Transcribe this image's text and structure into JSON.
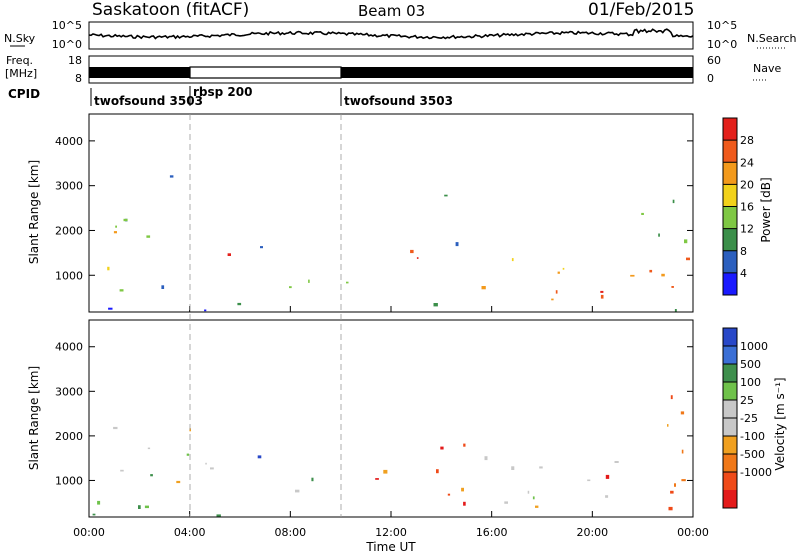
{
  "header": {
    "title_left": "Saskatoon (fitACF)",
    "title_center": "Beam 03",
    "title_right": "01/Feb/2015"
  },
  "noise_panel": {
    "left_label": "N.Sky",
    "right_label": "N.Search",
    "left_ticks": [
      "10^5",
      "10^0"
    ],
    "right_ticks": [
      "10^5",
      "10^0"
    ]
  },
  "freq_panel": {
    "left_label_1": "Freq.",
    "left_label_2": "[MHz]",
    "right_label": "Nave",
    "left_ticks": [
      "18",
      "8"
    ],
    "right_ticks": [
      "60",
      "0"
    ]
  },
  "cpid_panel": {
    "label": "CPID",
    "segments": [
      {
        "name": "twofsound 3503",
        "start_hour": 0,
        "end_hour": 3.9
      },
      {
        "name": "rbsp 200",
        "start_hour": 3.9,
        "end_hour": 9.8
      },
      {
        "name": "twofsound 3503",
        "start_hour": 9.8,
        "end_hour": 24
      }
    ]
  },
  "chart_data": [
    {
      "type": "heatmap",
      "parameter": "Power",
      "ylabel": "Slant Range [km]",
      "ylim": [
        180,
        4600
      ],
      "yticks": [
        "1000",
        "2000",
        "3000",
        "4000"
      ],
      "x_unit": "hours UT",
      "xlim": [
        0,
        24
      ],
      "colorbar_label": "Power [dB]",
      "colorbar_ticks": [
        "4",
        "8",
        "12",
        "16",
        "20",
        "24",
        "28"
      ],
      "colorbar_colors": [
        "#1a1aff",
        "#2b5fbe",
        "#3b8f4a",
        "#7fc844",
        "#f2d21b",
        "#f39a1c",
        "#ef5a1c",
        "#e3201b"
      ],
      "echo_regions": [
        {
          "t0": 0,
          "t1": 1.6,
          "r0": 300,
          "r1": 2300,
          "level": 0.55
        },
        {
          "t0": 1.2,
          "t1": 3.2,
          "r0": 700,
          "r1": 2700,
          "level": 0.35
        },
        {
          "t0": 2.6,
          "t1": 3.4,
          "r0": 2600,
          "r1": 3400,
          "level": 0.15
        },
        {
          "t0": 4.8,
          "t1": 5.6,
          "r0": 800,
          "r1": 1700,
          "level": 0.9
        },
        {
          "t0": 6.2,
          "t1": 7.0,
          "r0": 1400,
          "r1": 2300,
          "level": 0.25
        },
        {
          "t0": 7.0,
          "t1": 9.5,
          "r0": 400,
          "r1": 1100,
          "level": 0.3
        },
        {
          "t0": 10.0,
          "t1": 11.2,
          "r0": 500,
          "r1": 1500,
          "level": 0.35
        },
        {
          "t0": 12.2,
          "t1": 14.0,
          "r0": 400,
          "r1": 1600,
          "level": 0.85
        },
        {
          "t0": 14.0,
          "t1": 15.2,
          "r0": 1600,
          "r1": 3000,
          "level": 0.2
        },
        {
          "t0": 15.5,
          "t1": 24,
          "r0": 300,
          "r1": 1500,
          "level": 0.7
        },
        {
          "t0": 17.0,
          "t1": 21.0,
          "r0": 300,
          "r1": 800,
          "level": 0.95
        },
        {
          "t0": 21.5,
          "t1": 23.8,
          "r0": 1500,
          "r1": 3200,
          "level": 0.4
        },
        {
          "t0": 0,
          "t1": 24,
          "r0": 200,
          "r1": 400,
          "level": 0.2
        }
      ]
    },
    {
      "type": "heatmap",
      "parameter": "Velocity",
      "ylabel": "Slant Range [km]",
      "ylim": [
        180,
        4600
      ],
      "yticks": [
        "1000",
        "2000",
        "3000",
        "4000"
      ],
      "x_unit": "hours UT",
      "xlim": [
        0,
        24
      ],
      "xticks": [
        "00:00",
        "04:00",
        "08:00",
        "12:00",
        "16:00",
        "20:00",
        "00:00"
      ],
      "xlabel": "Time UT",
      "colorbar_label": "Velocity [m s⁻¹]",
      "colorbar_ticks": [
        "1000",
        "500",
        "100",
        "25",
        "-25",
        "-100",
        "-500",
        "-1000"
      ],
      "colorbar_colors": [
        "#2848c8",
        "#3b6fd6",
        "#3e8f4c",
        "#6fc24a",
        "#c8c8c8",
        "#c8c8c8",
        "#f0a020",
        "#f07818",
        "#ef4a18",
        "#e31a1a"
      ],
      "echo_regions": [
        {
          "t0": 0,
          "t1": 2.6,
          "r0": 300,
          "r1": 2300,
          "level": 0.4
        },
        {
          "t0": 2.6,
          "t1": 4.8,
          "r0": 800,
          "r1": 2600,
          "level": 0.5
        },
        {
          "t0": 4.6,
          "t1": 5.8,
          "r0": 700,
          "r1": 1700,
          "level": 0.7
        },
        {
          "t0": 6.3,
          "t1": 6.9,
          "r0": 1500,
          "r1": 2300,
          "level": 0.1
        },
        {
          "t0": 7.0,
          "t1": 9.6,
          "r0": 500,
          "r1": 1100,
          "level": 0.45
        },
        {
          "t0": 10.0,
          "t1": 12.0,
          "r0": 500,
          "r1": 1600,
          "level": 0.75
        },
        {
          "t0": 12.0,
          "t1": 15.0,
          "r0": 500,
          "r1": 2200,
          "level": 0.75
        },
        {
          "t0": 15.0,
          "t1": 22.0,
          "r0": 300,
          "r1": 1600,
          "level": 0.45
        },
        {
          "t0": 20.0,
          "t1": 23.8,
          "r0": 400,
          "r1": 1600,
          "level": 0.8
        },
        {
          "t0": 21.5,
          "t1": 23.8,
          "r0": 1600,
          "r1": 3200,
          "level": 0.8
        },
        {
          "t0": 0,
          "t1": 10.0,
          "r0": 200,
          "r1": 450,
          "level": 0.3
        }
      ]
    }
  ]
}
